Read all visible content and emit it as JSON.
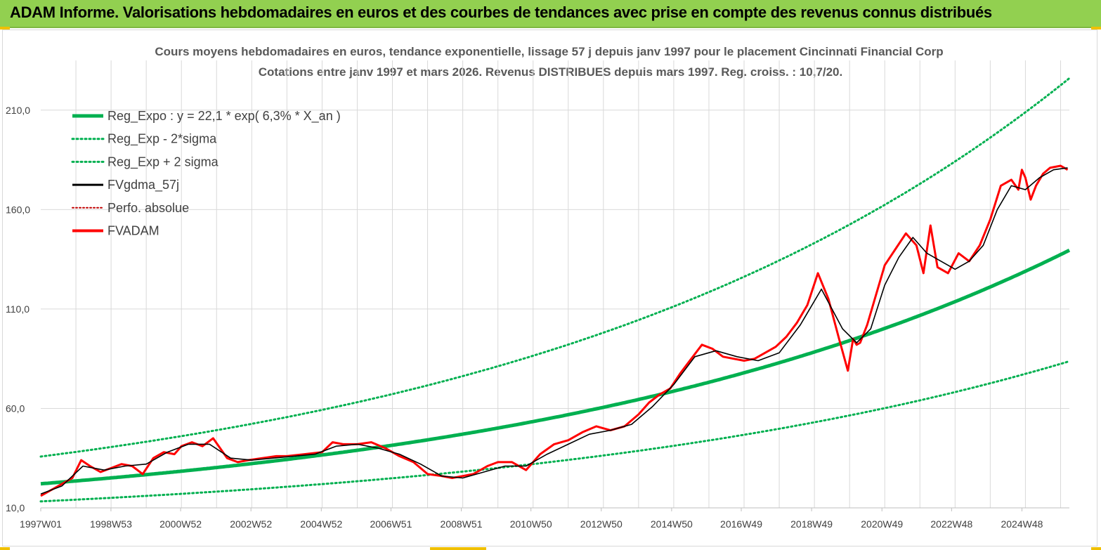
{
  "header": {
    "title": "ADAM Informe. Valorisations hebdomadaires en euros et des courbes de tendances avec prise en compte des revenus connus distribués"
  },
  "colors": {
    "banner": "#92d050",
    "trend": "#00b050",
    "smoothed": "#000000",
    "fvadam": "#ff0000",
    "perfo": "#c00000"
  },
  "chart_data": {
    "type": "line",
    "title": "Cours moyens hebdomadaires en euros, tendance exponentielle, lissage 57 j depuis janv 1997 pour le placement Cincinnati Financial Corp",
    "subtitle": "Cotations entre janv 1997 et mars 2026. Revenus DISTRIBUES depuis mars 1997. Reg. croiss. : 10,7/20.",
    "xlabel": "",
    "ylabel": "",
    "ylim": [
      10,
      235
    ],
    "yticks": [
      "10,0",
      "60,0",
      "110,0",
      "160,0",
      "210,0"
    ],
    "x_range": [
      "1997W01",
      "2026W10"
    ],
    "xticks": [
      "1997W01",
      "1998W53",
      "2000W52",
      "2002W52",
      "2004W52",
      "2006W51",
      "2008W51",
      "2010W50",
      "2012W50",
      "2014W50",
      "2016W49",
      "2018W49",
      "2020W49",
      "2022W48",
      "2024W48"
    ],
    "grid": true,
    "legend_position": "top-left",
    "legend": [
      "Reg_Expo : y = 22,1 * exp( 6,3% *  X_an )",
      "Reg_Exp - 2*sigma",
      "Reg_Exp + 2 sigma",
      "FVgdma_57j",
      "Perfo. absolue",
      "FVADAM"
    ],
    "trend": {
      "a": 22.1,
      "rate": 0.063,
      "lower_factor": 0.6,
      "upper_factor": 1.62
    },
    "series": [
      {
        "name": "FVADAM",
        "x": [
          1997.0,
          1997.3,
          1997.6,
          1997.9,
          1998.15,
          1998.4,
          1998.7,
          1999.0,
          1999.3,
          1999.6,
          1999.9,
          2000.2,
          2000.5,
          2000.8,
          2001.0,
          2001.3,
          2001.6,
          2001.9,
          2002.3,
          2002.6,
          2002.9,
          2003.3,
          2003.7,
          2004.0,
          2004.5,
          2005.0,
          2005.3,
          2005.6,
          2006.0,
          2006.4,
          2006.8,
          2007.2,
          2007.6,
          2008.0,
          2008.4,
          2008.7,
          2009.0,
          2009.3,
          2009.7,
          2010.0,
          2010.4,
          2010.8,
          2011.2,
          2011.6,
          2012.0,
          2012.4,
          2012.8,
          2013.2,
          2013.6,
          2014.0,
          2014.3,
          2014.6,
          2014.9,
          2015.2,
          2015.5,
          2015.8,
          2016.1,
          2016.4,
          2016.7,
          2017.0,
          2017.3,
          2017.6,
          2017.9,
          2018.2,
          2018.5,
          2018.8,
          2019.1,
          2019.4,
          2019.7,
          2019.95,
          2020.1,
          2020.2,
          2020.3,
          2020.5,
          2020.8,
          2021.0,
          2021.3,
          2021.6,
          2021.9,
          2022.1,
          2022.3,
          2022.5,
          2022.8,
          2023.1,
          2023.4,
          2023.7,
          2024.0,
          2024.3,
          2024.6,
          2024.8,
          2024.9,
          2025.0,
          2025.15,
          2025.3,
          2025.5,
          2025.7,
          2026.0,
          2026.2
        ],
        "values": [
          16,
          19,
          22,
          25,
          34,
          31,
          28,
          30,
          32,
          31,
          27,
          35,
          38,
          37,
          41,
          43,
          41,
          45,
          35,
          33,
          34,
          35,
          36,
          36,
          37,
          38,
          43,
          42,
          42,
          43,
          40,
          36,
          33,
          27,
          26,
          25,
          26,
          27,
          31,
          33,
          33,
          29,
          37,
          42,
          44,
          48,
          51,
          49,
          51,
          57,
          63,
          67,
          70,
          78,
          85,
          92,
          90,
          86,
          85,
          84,
          85,
          88,
          91,
          96,
          103,
          112,
          128,
          115,
          95,
          79,
          95,
          92,
          93,
          102,
          120,
          132,
          140,
          148,
          142,
          128,
          152,
          131,
          128,
          138,
          134,
          142,
          155,
          172,
          175,
          170,
          180,
          176,
          165,
          172,
          178,
          181,
          182,
          180
        ]
      },
      {
        "name": "FVgdma_57j",
        "x": [
          1997.0,
          1997.6,
          1998.2,
          1998.8,
          1999.4,
          2000.0,
          2000.6,
          2001.2,
          2001.8,
          2002.4,
          2003.0,
          2003.6,
          2004.2,
          2004.8,
          2005.4,
          2006.0,
          2006.6,
          2007.2,
          2007.8,
          2008.4,
          2009.0,
          2009.6,
          2010.2,
          2010.8,
          2011.4,
          2012.0,
          2012.6,
          2013.2,
          2013.8,
          2014.4,
          2015.0,
          2015.6,
          2016.2,
          2016.8,
          2017.4,
          2018.0,
          2018.6,
          2019.2,
          2019.8,
          2020.2,
          2020.6,
          2021.0,
          2021.4,
          2021.8,
          2022.2,
          2022.6,
          2023.0,
          2023.4,
          2023.8,
          2024.2,
          2024.6,
          2025.0,
          2025.4,
          2025.8,
          2026.2
        ],
        "values": [
          17,
          21,
          31,
          29,
          31,
          32,
          38,
          42,
          42,
          35,
          34,
          35,
          36,
          37,
          41,
          42,
          40,
          37,
          32,
          26,
          25,
          28,
          31,
          31,
          37,
          42,
          47,
          49,
          52,
          61,
          72,
          86,
          89,
          86,
          84,
          88,
          102,
          120,
          100,
          93,
          100,
          122,
          136,
          146,
          138,
          134,
          130,
          134,
          142,
          160,
          172,
          170,
          176,
          180,
          181
        ]
      }
    ]
  }
}
